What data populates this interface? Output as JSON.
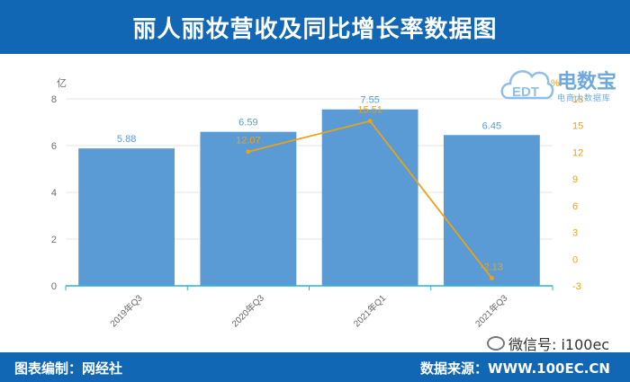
{
  "header": {
    "title": "丽人丽妆营收及同比增长率数据图"
  },
  "footer": {
    "left": "图表编制：网经社",
    "right": "数据来源：WWW.100EC.CN"
  },
  "watermark": {
    "wechat": "微信号: i100ec",
    "logo_main": "电数宝",
    "logo_sub": "电商大数据库",
    "logo_badge": "EDT"
  },
  "colors": {
    "header_bg": "#1267b4",
    "bar": "#5b9bd5",
    "line": "#e8a317",
    "left_axis": "#6d6d6d",
    "right_axis": "#e8a317",
    "bar_label": "#5b9bd5",
    "baseline": "#27b5d1"
  },
  "chart_data": {
    "type": "bar",
    "categories": [
      "2019年Q3",
      "2020年Q3",
      "2021年Q1",
      "2021年Q3"
    ],
    "y_unit_label": "亿",
    "ylim": [
      0,
      8
    ],
    "yticks": [
      0,
      2,
      4,
      6,
      8
    ],
    "y2_unit_label": "%",
    "y2lim": [
      -3,
      18
    ],
    "y2ticks": [
      -3,
      0,
      3,
      6,
      9,
      12,
      15,
      18
    ],
    "series": [
      {
        "type": "bar",
        "axis": "left",
        "values": [
          5.88,
          6.59,
          7.55,
          6.45
        ],
        "labels": [
          "5.88",
          "6.59",
          "7.55",
          "6.45"
        ]
      },
      {
        "type": "line",
        "axis": "right",
        "values": [
          null,
          12.07,
          15.51,
          -2.13
        ],
        "labels": [
          "",
          "12.07",
          "15.51",
          "-2.13"
        ]
      }
    ],
    "grid": true,
    "legend": "none"
  }
}
